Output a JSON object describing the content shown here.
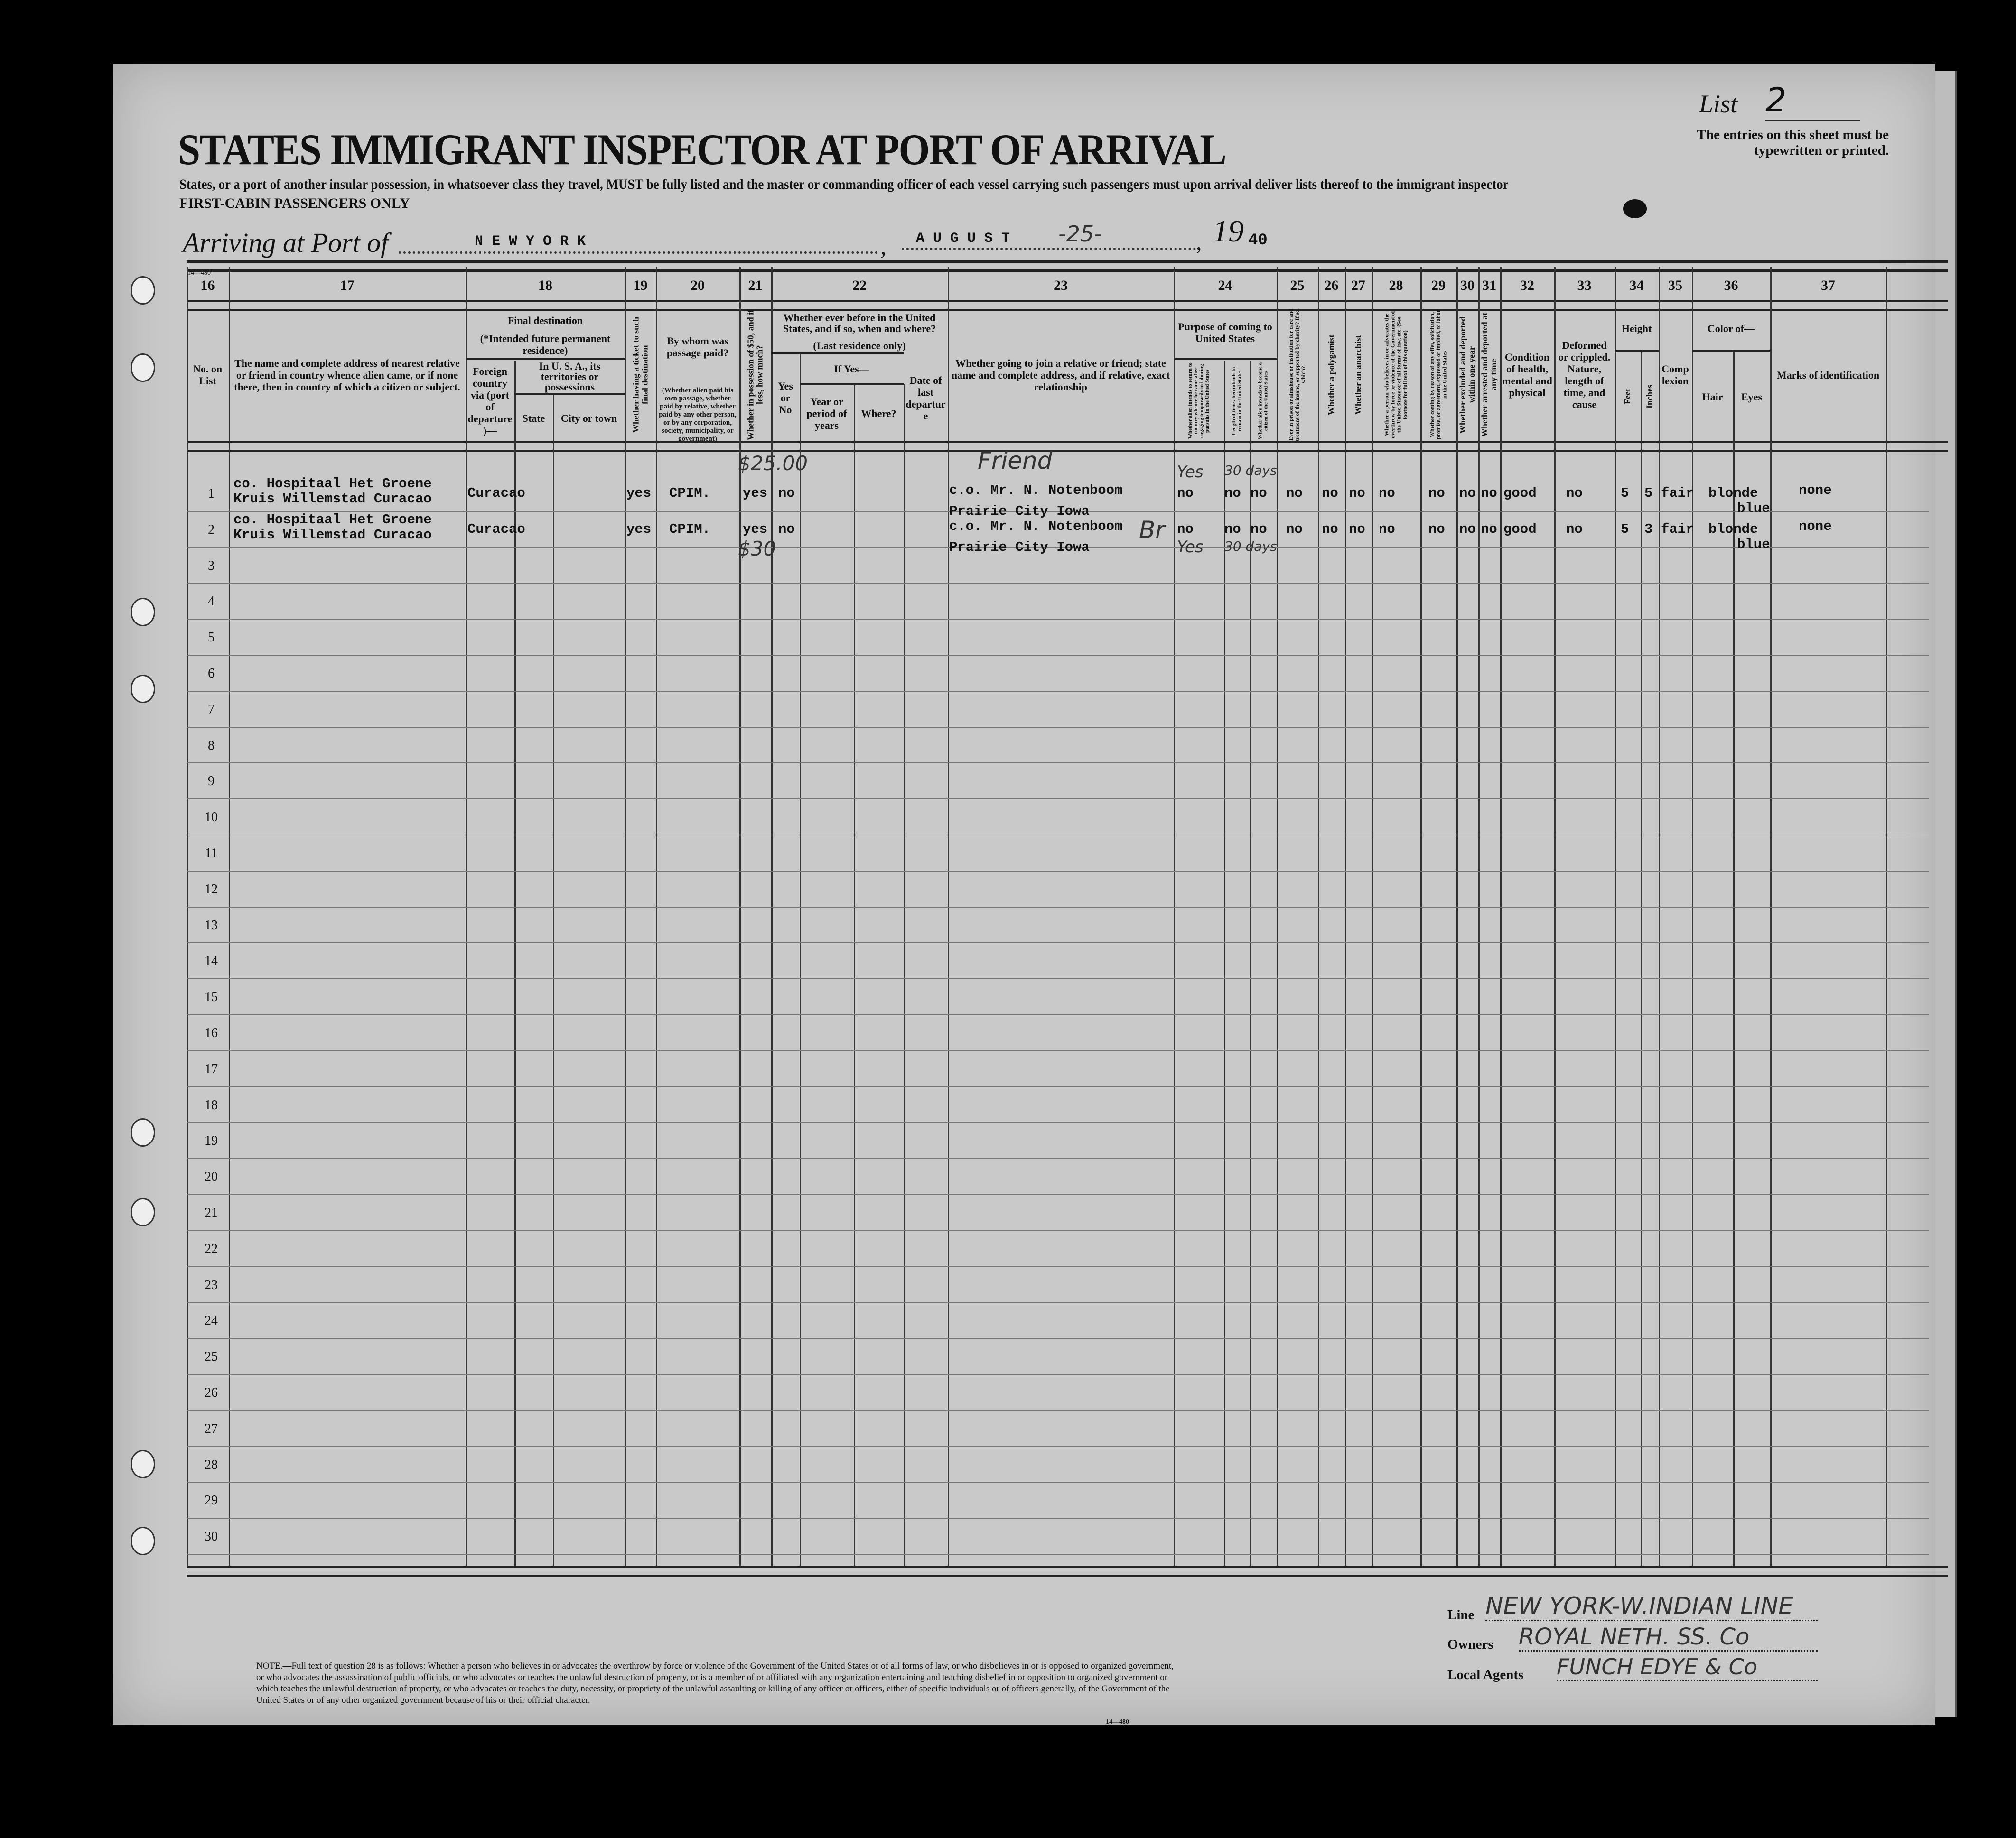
{
  "header": {
    "form_number_top": "14—480",
    "title": "STATES IMMIGRANT INSPECTOR AT PORT OF ARRIVAL",
    "instruction": "States, or a port of another insular possession, in whatsoever class they travel, MUST be fully listed and the master or commanding officer of each vessel carrying such passengers must upon arrival deliver lists thereof to the immigrant inspector",
    "cabin_class": "FIRST-CABIN PASSENGERS ONLY",
    "list_label": "List",
    "list_number": "2",
    "entries_note": "The entries on this sheet must be typewritten or printed.",
    "arriving_label": "Arriving at Port of",
    "port": "N E W  Y O R K",
    "month": "A U G U S T",
    "day": "-25-",
    "year_prefix": "19",
    "year_suffix": "40"
  },
  "columns": {
    "c16": {
      "num": "16",
      "label": "No. on List"
    },
    "c17": {
      "num": "17",
      "label": "The name and complete address of nearest relative or friend in country whence alien came, or if none there, then in country of which a citizen or subject."
    },
    "c18": {
      "num": "18",
      "label": "Final destination",
      "note": "(*Intended future permanent residence)",
      "foreign": "Foreign country via (port of departure)—",
      "usa": "In U. S. A., its territories or possessions",
      "state": "State",
      "city": "City or town"
    },
    "c19": {
      "num": "19",
      "label": "Whether having a ticket to such final destination"
    },
    "c20": {
      "num": "20",
      "label": "By whom was passage paid?",
      "note": "(Whether alien paid his own passage, whether paid by relative, whether paid by any other person, or by any corporation, society, municipality, or government)"
    },
    "c21": {
      "num": "21",
      "label": "Whether in possession of $50, and if less, how much?"
    },
    "c22": {
      "num": "22",
      "label": "Whether ever before in the United States, and if so, when and where?",
      "note": "(Last residence only)",
      "yesno": "Yes or No",
      "ifyes": "If Yes—",
      "years": "Year or period of years",
      "where": "Where?",
      "date": "Date of last departure"
    },
    "c23": {
      "num": "23",
      "label": "Whether going to join a relative or friend; state name and complete address, and if relative, exact relationship"
    },
    "c24": {
      "num": "24",
      "label": "Purpose of coming to United States",
      "a": "Whether alien intends to return to country whence he came after engaging temporarily in laboring pursuits in the United States",
      "b": "Length of time alien intends to remain in the United States",
      "c": "Whether alien intends to become a citizen of the United States"
    },
    "c25": {
      "num": "25",
      "label": "Ever in prison or almshouse or institution for care and treatment of the insane, or supported by charity? If so, which?"
    },
    "c26": {
      "num": "26",
      "label": "Whether a polygamist"
    },
    "c27": {
      "num": "27",
      "label": "Whether an anarchist"
    },
    "c28": {
      "num": "28",
      "label": "Whether a person who believes in or advocates the overthrow by force or violence of the Government of the United States or of all forms of law, etc. (See footnote for full text of this question)"
    },
    "c29": {
      "num": "29",
      "label": "Whether coming by reason of any offer, solicitation, promise, or agreement, expressed or implied, to labor in the United States"
    },
    "c30": {
      "num": "30",
      "label": "Whether excluded and deported within one year"
    },
    "c31": {
      "num": "31",
      "label": "Whether arrested and deported at any time"
    },
    "c32": {
      "num": "32",
      "label": "Condition of health, mental and physical"
    },
    "c33": {
      "num": "33",
      "label": "Deformed or crippled. Nature, length of time, and cause"
    },
    "c34": {
      "num": "34",
      "label": "Height",
      "feet": "Feet",
      "inches": "Inches"
    },
    "c35": {
      "num": "35",
      "label": "Complexion"
    },
    "c36": {
      "num": "36",
      "label": "Color of—",
      "hair": "Hair",
      "eyes": "Eyes"
    },
    "c37": {
      "num": "37",
      "label": "Marks of identification"
    }
  },
  "row_numbers": [
    "1",
    "2",
    "3",
    "4",
    "5",
    "6",
    "7",
    "8",
    "9",
    "10",
    "11",
    "12",
    "13",
    "14",
    "15",
    "16",
    "17",
    "18",
    "19",
    "20",
    "21",
    "22",
    "23",
    "24",
    "25",
    "26",
    "27",
    "28",
    "29",
    "30"
  ],
  "entries": [
    {
      "relative_line1": "co. Hospitaal Het Groene",
      "relative_line2": "Kruis Willemstad Curacao",
      "foreign_country": "Curacao",
      "ticket": "yes",
      "passage_paid_by": "CPIM.",
      "money": "yes",
      "money_handwritten": "$25.00",
      "been_before": "no",
      "join_line1": "c.o. Mr. N. Notenboom",
      "join_line2": "Prairie City    Iowa",
      "join_handwritten": "Friend",
      "return_intent": "no",
      "return_handwritten": "Yes",
      "length_of_stay": "no",
      "length_handwritten": "30 days",
      "citizen_intent": "no",
      "prison": "no",
      "polygamist": "no",
      "anarchist": "no",
      "overthrow": "no",
      "labor_offer": "no",
      "excluded": "no",
      "arrested": "no",
      "health": "good",
      "deformed": "no",
      "feet": "5",
      "inches": "5",
      "complexion": "fair",
      "hair": "blonde",
      "eyes": "blue",
      "marks": "none"
    },
    {
      "relative_line1": "co. Hospitaal Het Groene",
      "relative_line2": "Kruis Willemstad Curacao",
      "foreign_country": "Curacao",
      "ticket": "yes",
      "passage_paid_by": "CPIM.",
      "money": "yes",
      "money_handwritten": "$30",
      "been_before": "no",
      "join_line1": "c.o. Mr. N. Notenboom",
      "join_line2": "Prairie City    Iowa",
      "join_handwritten": "Br",
      "return_intent": "no",
      "return_handwritten": "Yes",
      "length_of_stay": "no",
      "length_handwritten": "30 days",
      "citizen_intent": "no",
      "prison": "no",
      "polygamist": "no",
      "anarchist": "no",
      "overthrow": "no",
      "labor_offer": "no",
      "excluded": "no",
      "arrested": "no",
      "health": "good",
      "deformed": "no",
      "feet": "5",
      "inches": "3",
      "complexion": "fair",
      "hair": "blonde",
      "eyes": "blue",
      "marks": "none"
    }
  ],
  "footer": {
    "note": "NOTE.—Full text of question 28 is as follows: Whether a person who believes in or advocates the overthrow by force or violence of the Government of the United States or of all forms of law, or who disbelieves in or is opposed to organized government, or who advocates the assassination of public officials, or who advocates or teaches the unlawful destruction of property, or is a member of or affiliated with any organization entertaining and teaching disbelief in or opposition to organized government or which teaches the unlawful destruction of property, or who advocates or teaches the duty, necessity, or propriety of the unlawful assaulting or killing of any officer or officers, either of specific individuals or of officers generally, of the Government of the United States or of any other organized government because of his or their official character.",
    "form_number": "14—480",
    "line_label": "Line",
    "line_value": "NEW YORK-W.INDIAN LINE",
    "owners_label": "Owners",
    "owners_value": "ROYAL NETH. SS. Co",
    "agents_label": "Local Agents",
    "agents_value": "FUNCH EDYE & Co"
  },
  "colors": {
    "background": "#000000",
    "paper": "#c9c9c9",
    "ink": "#111111"
  }
}
